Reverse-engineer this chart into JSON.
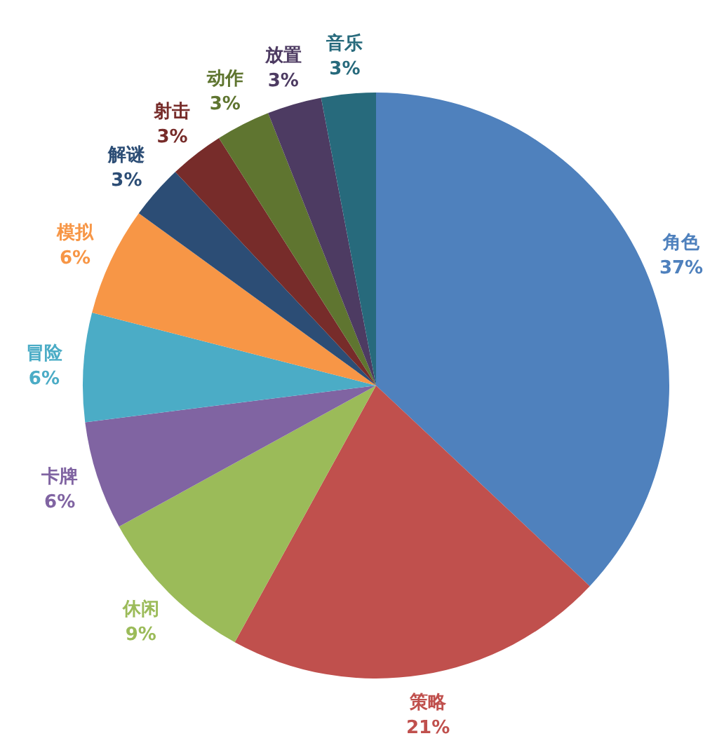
{
  "chart_data": {
    "type": "pie",
    "categories": [
      "角色",
      "策略",
      "休闲",
      "卡牌",
      "冒险",
      "模拟",
      "解谜",
      "射击",
      "动作",
      "放置",
      "音乐"
    ],
    "values": [
      37,
      21,
      9,
      6,
      6,
      6,
      3,
      3,
      3,
      3,
      3
    ],
    "value_labels": [
      "37%",
      "21%",
      "9%",
      "6%",
      "6%",
      "6%",
      "3%",
      "3%",
      "3%",
      "3%",
      "3%"
    ],
    "colors": [
      "#4f81bd",
      "#c0504d",
      "#9bbb59",
      "#8064a2",
      "#4bacc6",
      "#f79646",
      "#2c4d75",
      "#772c2a",
      "#5f7530",
      "#4d3b62",
      "#276a7c"
    ],
    "legend": false
  }
}
